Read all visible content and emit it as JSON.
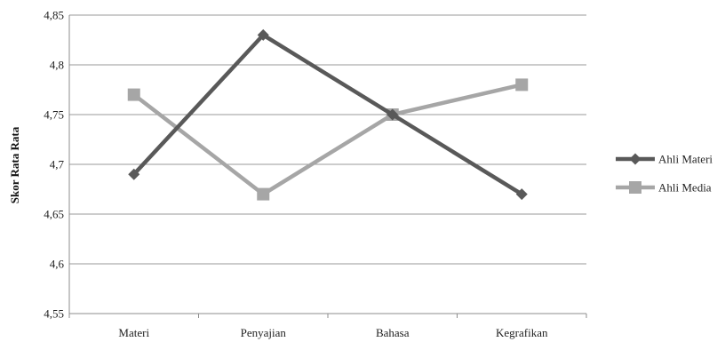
{
  "chart_data": {
    "type": "line",
    "title": "",
    "xlabel": "",
    "ylabel": "Skor Rata Rata",
    "categories": [
      "Materi",
      "Penyajian",
      "Bahasa",
      "Kegrafikan"
    ],
    "ylim": [
      4.55,
      4.85
    ],
    "yticks": [
      "4,55",
      "4,6",
      "4,65",
      "4,7",
      "4,75",
      "4,8",
      "4,85"
    ],
    "ytick_values": [
      4.55,
      4.6,
      4.65,
      4.7,
      4.75,
      4.8,
      4.85
    ],
    "grid": "horizontal",
    "legend_position": "right",
    "series": [
      {
        "name": "Ahli Materi",
        "values": [
          4.69,
          4.83,
          4.75,
          4.67
        ],
        "color": "#595959",
        "marker": "diamond"
      },
      {
        "name": "Ahli Media",
        "values": [
          4.77,
          4.67,
          4.75,
          4.78
        ],
        "color": "#a6a6a6",
        "marker": "square"
      }
    ]
  }
}
